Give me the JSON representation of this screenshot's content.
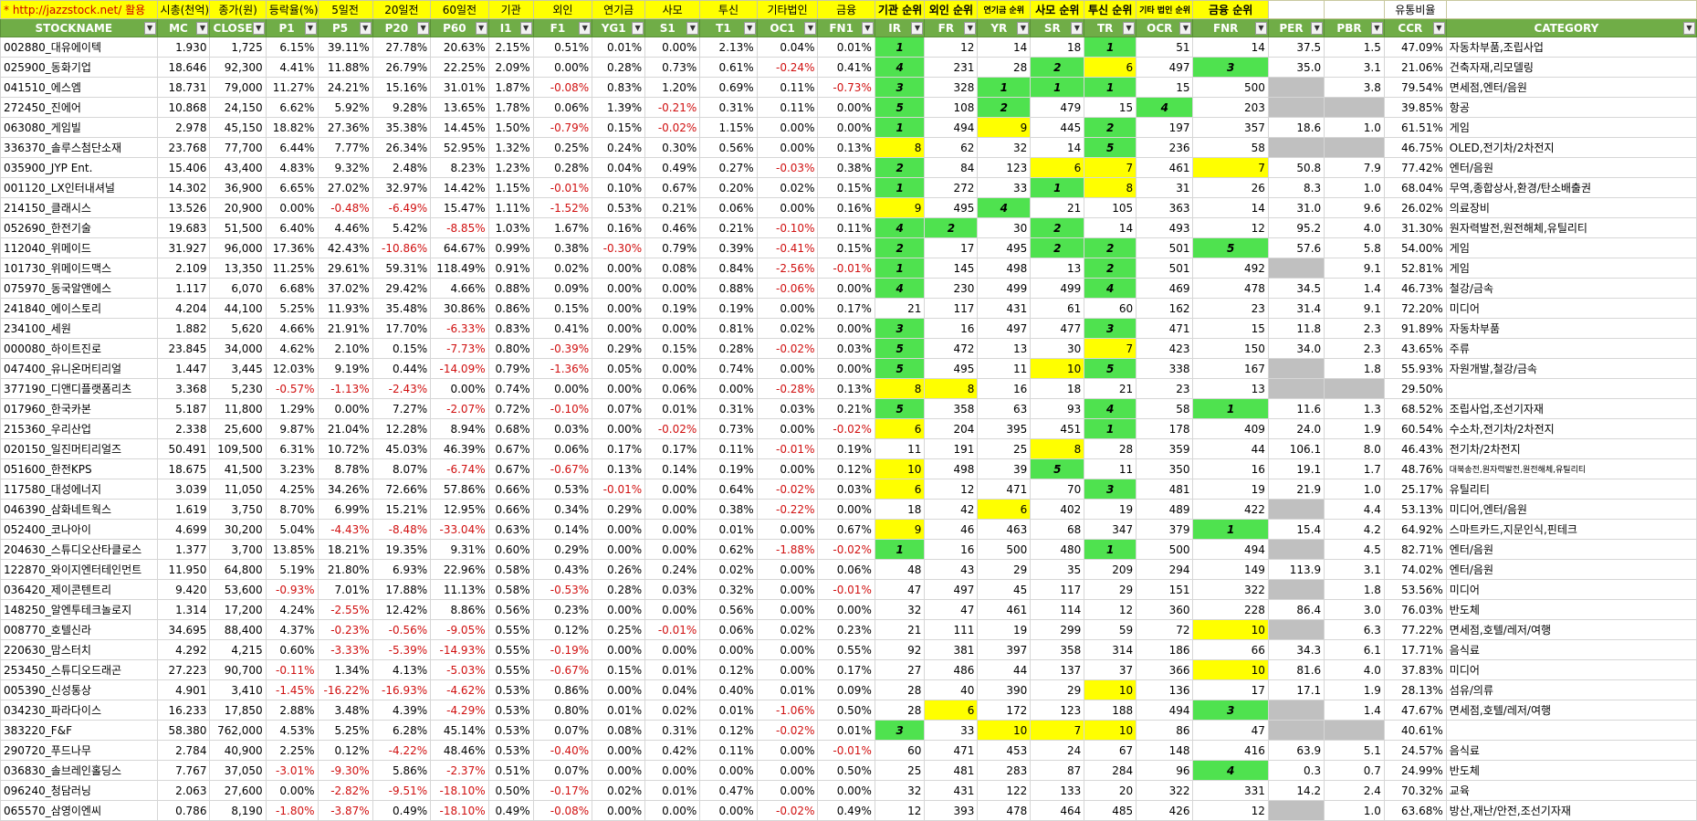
{
  "top_row": [
    "* http://jazzstock.net/ 활용",
    "시총(천억)",
    "종가(원)",
    "등락율(%)",
    "5일전",
    "",
    "20일전",
    "",
    "60일전",
    "",
    "기관",
    "외인",
    "연기금",
    "사모",
    "투신",
    "기타법인",
    "금융",
    "기관 순위",
    "외인 순위",
    "연기금 순위",
    "사모 순위",
    "투신 순위",
    "기타 법인 순위",
    "금융 순위",
    "",
    "",
    "유통비율",
    ""
  ],
  "columns": [
    "STOCKNAME",
    "MC",
    "CLOSE",
    "P1",
    "P5",
    "P20",
    "P60",
    "I1",
    "F1",
    "YG1",
    "S1",
    "T1",
    "OC1",
    "FN1",
    "IR",
    "FR",
    "YR",
    "SR",
    "TR",
    "OCR",
    "FNR",
    "PER",
    "PBR",
    "CCR",
    "CATEGORY"
  ],
  "colors": {
    "header_green": "#70ad47",
    "rank_green": "#4fe24f",
    "highlight_yellow": "#ffff00",
    "missing_gray": "#c0c0c0",
    "negative_red": "#d01010"
  },
  "rows": [
    [
      "002880_대유에이텍",
      "1.930",
      "1,725",
      "6.15%",
      "39.11%",
      "27.78%",
      "20.63%",
      "2.15%",
      "0.51%",
      "0.01%",
      "0.00%",
      "2.13%",
      "0.04%",
      "0.01%",
      "1",
      "12",
      "14",
      "18",
      "1",
      "51",
      "14",
      "37.5",
      "1.5",
      "47.09%",
      "자동차부품,조립사업"
    ],
    [
      "025900_동화기업",
      "18.646",
      "92,300",
      "4.41%",
      "11.88%",
      "26.79%",
      "22.25%",
      "2.09%",
      "0.00%",
      "0.28%",
      "0.73%",
      "0.61%",
      "-0.24%",
      "0.41%",
      "4",
      "231",
      "28",
      "2",
      "6",
      "497",
      "3",
      "35.0",
      "3.1",
      "21.06%",
      "건축자재,리모델링"
    ],
    [
      "041510_에스엠",
      "18.731",
      "79,000",
      "11.27%",
      "24.21%",
      "15.16%",
      "31.01%",
      "1.87%",
      "-0.08%",
      "0.83%",
      "1.20%",
      "0.69%",
      "0.11%",
      "-0.73%",
      "3",
      "328",
      "1",
      "1",
      "1",
      "15",
      "500",
      "",
      "3.8",
      "79.54%",
      "면세점,엔터/음원"
    ],
    [
      "272450_진에어",
      "10.868",
      "24,150",
      "6.62%",
      "5.92%",
      "9.28%",
      "13.65%",
      "1.78%",
      "0.06%",
      "1.39%",
      "-0.21%",
      "0.31%",
      "0.11%",
      "0.00%",
      "5",
      "108",
      "2",
      "479",
      "15",
      "4",
      "203",
      "",
      "",
      "39.85%",
      "항공"
    ],
    [
      "063080_게임빌",
      "2.978",
      "45,150",
      "18.82%",
      "27.36%",
      "35.38%",
      "14.45%",
      "1.50%",
      "-0.79%",
      "0.15%",
      "-0.02%",
      "1.15%",
      "0.00%",
      "0.00%",
      "1",
      "494",
      "9",
      "445",
      "2",
      "197",
      "357",
      "18.6",
      "1.0",
      "61.51%",
      "게임"
    ],
    [
      "336370_솔루스첨단소재",
      "23.768",
      "77,700",
      "6.44%",
      "7.77%",
      "26.34%",
      "52.95%",
      "1.32%",
      "0.25%",
      "0.24%",
      "0.30%",
      "0.56%",
      "0.00%",
      "0.13%",
      "8",
      "62",
      "32",
      "14",
      "5",
      "236",
      "58",
      "",
      "",
      "46.75%",
      "OLED,전기차/2차전지"
    ],
    [
      "035900_JYP Ent.",
      "15.406",
      "43,400",
      "4.83%",
      "9.32%",
      "2.48%",
      "8.23%",
      "1.23%",
      "0.28%",
      "0.04%",
      "0.49%",
      "0.27%",
      "-0.03%",
      "0.38%",
      "2",
      "84",
      "123",
      "6",
      "7",
      "461",
      "7",
      "50.8",
      "7.9",
      "77.42%",
      "엔터/음원"
    ],
    [
      "001120_LX인터내셔널",
      "14.302",
      "36,900",
      "6.65%",
      "27.02%",
      "32.97%",
      "14.42%",
      "1.15%",
      "-0.01%",
      "0.10%",
      "0.67%",
      "0.20%",
      "0.02%",
      "0.15%",
      "1",
      "272",
      "33",
      "1",
      "8",
      "31",
      "26",
      "8.3",
      "1.0",
      "68.04%",
      "무역,종합상사,환경/탄소배출권"
    ],
    [
      "214150_클래시스",
      "13.526",
      "20,900",
      "0.00%",
      "-0.48%",
      "-6.49%",
      "15.47%",
      "1.11%",
      "-1.52%",
      "0.53%",
      "0.21%",
      "0.06%",
      "0.00%",
      "0.16%",
      "9",
      "495",
      "4",
      "21",
      "105",
      "363",
      "14",
      "31.0",
      "9.6",
      "26.02%",
      "의료장비"
    ],
    [
      "052690_한전기술",
      "19.683",
      "51,500",
      "6.40%",
      "4.46%",
      "5.42%",
      "-8.85%",
      "1.03%",
      "1.67%",
      "0.16%",
      "0.46%",
      "0.21%",
      "-0.10%",
      "0.11%",
      "4",
      "2",
      "30",
      "2",
      "14",
      "493",
      "12",
      "95.2",
      "4.0",
      "31.30%",
      "원자력발전,원전해체,유틸리티"
    ],
    [
      "112040_위메이드",
      "31.927",
      "96,000",
      "17.36%",
      "42.43%",
      "-10.86%",
      "64.67%",
      "0.99%",
      "0.38%",
      "-0.30%",
      "0.79%",
      "0.39%",
      "-0.41%",
      "0.15%",
      "2",
      "17",
      "495",
      "2",
      "2",
      "501",
      "5",
      "57.6",
      "5.8",
      "54.00%",
      "게임"
    ],
    [
      "101730_위메이드맥스",
      "2.109",
      "13,350",
      "11.25%",
      "29.61%",
      "59.31%",
      "118.49%",
      "0.91%",
      "0.02%",
      "0.00%",
      "0.08%",
      "0.84%",
      "-2.56%",
      "-0.01%",
      "1",
      "145",
      "498",
      "13",
      "2",
      "501",
      "492",
      "",
      "9.1",
      "52.81%",
      "게임"
    ],
    [
      "075970_동국알앤에스",
      "1.117",
      "6,070",
      "6.68%",
      "37.02%",
      "29.42%",
      "4.66%",
      "0.88%",
      "0.09%",
      "0.00%",
      "0.00%",
      "0.88%",
      "-0.06%",
      "0.00%",
      "4",
      "230",
      "499",
      "499",
      "4",
      "469",
      "478",
      "34.5",
      "1.4",
      "46.73%",
      "철강/금속"
    ],
    [
      "241840_에이스토리",
      "4.204",
      "44,100",
      "5.25%",
      "11.93%",
      "35.48%",
      "30.86%",
      "0.86%",
      "0.15%",
      "0.00%",
      "0.19%",
      "0.19%",
      "0.00%",
      "0.17%",
      "21",
      "117",
      "431",
      "61",
      "60",
      "162",
      "23",
      "31.4",
      "9.1",
      "72.20%",
      "미디어"
    ],
    [
      "234100_세원",
      "1.882",
      "5,620",
      "4.66%",
      "21.91%",
      "17.70%",
      "-6.33%",
      "0.83%",
      "0.41%",
      "0.00%",
      "0.00%",
      "0.81%",
      "0.02%",
      "0.00%",
      "3",
      "16",
      "497",
      "477",
      "3",
      "471",
      "15",
      "11.8",
      "2.3",
      "91.89%",
      "자동차부품"
    ],
    [
      "000080_하이트진로",
      "23.845",
      "34,000",
      "4.62%",
      "2.10%",
      "0.15%",
      "-7.73%",
      "0.80%",
      "-0.39%",
      "0.29%",
      "0.15%",
      "0.28%",
      "-0.02%",
      "0.03%",
      "5",
      "472",
      "13",
      "30",
      "7",
      "423",
      "150",
      "34.0",
      "2.3",
      "43.65%",
      "주류"
    ],
    [
      "047400_유니온머티리얼",
      "1.447",
      "3,445",
      "12.03%",
      "9.19%",
      "0.44%",
      "-14.09%",
      "0.79%",
      "-1.36%",
      "0.05%",
      "0.00%",
      "0.74%",
      "0.00%",
      "0.00%",
      "5",
      "495",
      "11",
      "10",
      "5",
      "338",
      "167",
      "",
      "1.8",
      "55.93%",
      "자원개발,철강/금속"
    ],
    [
      "377190_디앤디플랫폼리츠",
      "3.368",
      "5,230",
      "-0.57%",
      "-1.13%",
      "-2.43%",
      "0.00%",
      "0.74%",
      "0.00%",
      "0.00%",
      "0.06%",
      "0.00%",
      "-0.28%",
      "0.13%",
      "8",
      "8",
      "16",
      "18",
      "21",
      "23",
      "13",
      "",
      "",
      "29.50%",
      ""
    ],
    [
      "017960_한국카본",
      "5.187",
      "11,800",
      "1.29%",
      "0.00%",
      "7.27%",
      "-2.07%",
      "0.72%",
      "-0.10%",
      "0.07%",
      "0.01%",
      "0.31%",
      "0.03%",
      "0.21%",
      "5",
      "358",
      "63",
      "93",
      "4",
      "58",
      "1",
      "11.6",
      "1.3",
      "68.52%",
      "조립사업,조선기자재"
    ],
    [
      "215360_우리산업",
      "2.338",
      "25,600",
      "9.87%",
      "21.04%",
      "12.28%",
      "8.94%",
      "0.68%",
      "0.03%",
      "0.00%",
      "-0.02%",
      "0.73%",
      "0.00%",
      "-0.02%",
      "6",
      "204",
      "395",
      "451",
      "1",
      "178",
      "409",
      "24.0",
      "1.9",
      "60.54%",
      "수소차,전기차/2차전지"
    ],
    [
      "020150_일진머티리얼즈",
      "50.491",
      "109,500",
      "6.31%",
      "10.72%",
      "45.03%",
      "46.39%",
      "0.67%",
      "0.06%",
      "0.17%",
      "0.17%",
      "0.11%",
      "-0.01%",
      "0.19%",
      "11",
      "191",
      "25",
      "8",
      "28",
      "359",
      "44",
      "106.1",
      "8.0",
      "46.43%",
      "전기차/2차전지"
    ],
    [
      "051600_한전KPS",
      "18.675",
      "41,500",
      "3.23%",
      "8.78%",
      "8.07%",
      "-6.74%",
      "0.67%",
      "-0.67%",
      "0.13%",
      "0.14%",
      "0.19%",
      "0.00%",
      "0.12%",
      "10",
      "498",
      "39",
      "5",
      "11",
      "350",
      "16",
      "19.1",
      "1.7",
      "48.76%",
      "대북송전,원자력발전,원전해체,유틸리티"
    ],
    [
      "117580_대성에너지",
      "3.039",
      "11,050",
      "4.25%",
      "34.26%",
      "72.66%",
      "57.86%",
      "0.66%",
      "0.53%",
      "-0.01%",
      "0.00%",
      "0.64%",
      "-0.02%",
      "0.03%",
      "6",
      "12",
      "471",
      "70",
      "3",
      "481",
      "19",
      "21.9",
      "1.0",
      "25.17%",
      "유틸리티"
    ],
    [
      "046390_삼화네트웍스",
      "1.619",
      "3,750",
      "8.70%",
      "6.99%",
      "15.21%",
      "12.95%",
      "0.66%",
      "0.34%",
      "0.29%",
      "0.00%",
      "0.38%",
      "-0.22%",
      "0.00%",
      "18",
      "42",
      "6",
      "402",
      "19",
      "489",
      "422",
      "",
      "4.4",
      "53.13%",
      "미디어,엔터/음원"
    ],
    [
      "052400_코나아이",
      "4.699",
      "30,200",
      "5.04%",
      "-4.43%",
      "-8.48%",
      "-33.04%",
      "0.63%",
      "0.14%",
      "0.00%",
      "0.00%",
      "0.01%",
      "0.00%",
      "0.67%",
      "9",
      "46",
      "463",
      "68",
      "347",
      "379",
      "1",
      "15.4",
      "4.2",
      "64.92%",
      "스마트카드,지문인식,핀테크"
    ],
    [
      "204630_스튜디오산타클로스",
      "1.377",
      "3,700",
      "13.85%",
      "18.21%",
      "19.35%",
      "9.31%",
      "0.60%",
      "0.29%",
      "0.00%",
      "0.00%",
      "0.62%",
      "-1.88%",
      "-0.02%",
      "1",
      "16",
      "500",
      "480",
      "1",
      "500",
      "494",
      "",
      "4.5",
      "82.71%",
      "엔터/음원"
    ],
    [
      "122870_와이지엔터테인먼트",
      "11.950",
      "64,800",
      "5.19%",
      "21.80%",
      "6.93%",
      "22.96%",
      "0.58%",
      "0.43%",
      "0.26%",
      "0.24%",
      "0.02%",
      "0.00%",
      "0.06%",
      "48",
      "43",
      "29",
      "35",
      "209",
      "294",
      "149",
      "113.9",
      "3.1",
      "74.02%",
      "엔터/음원"
    ],
    [
      "036420_제이콘텐트리",
      "9.420",
      "53,600",
      "-0.93%",
      "7.01%",
      "17.88%",
      "11.13%",
      "0.58%",
      "-0.53%",
      "0.28%",
      "0.03%",
      "0.32%",
      "0.00%",
      "-0.01%",
      "47",
      "497",
      "45",
      "117",
      "29",
      "151",
      "322",
      "",
      "1.8",
      "53.56%",
      "미디어"
    ],
    [
      "148250_알엔투테크놀로지",
      "1.314",
      "17,200",
      "4.24%",
      "-2.55%",
      "12.42%",
      "8.86%",
      "0.56%",
      "0.23%",
      "0.00%",
      "0.00%",
      "0.56%",
      "0.00%",
      "0.00%",
      "32",
      "47",
      "461",
      "114",
      "12",
      "360",
      "228",
      "86.4",
      "3.0",
      "76.03%",
      "반도체"
    ],
    [
      "008770_호텔신라",
      "34.695",
      "88,400",
      "4.37%",
      "-0.23%",
      "-0.56%",
      "-9.05%",
      "0.55%",
      "0.12%",
      "0.25%",
      "-0.01%",
      "0.06%",
      "0.02%",
      "0.23%",
      "21",
      "111",
      "19",
      "299",
      "59",
      "72",
      "10",
      "",
      "6.3",
      "77.22%",
      "면세점,호텔/레저/여행"
    ],
    [
      "220630_맘스터치",
      "4.292",
      "4,215",
      "0.60%",
      "-3.33%",
      "-5.39%",
      "-14.93%",
      "0.55%",
      "-0.19%",
      "0.00%",
      "0.00%",
      "0.00%",
      "0.00%",
      "0.55%",
      "92",
      "381",
      "397",
      "358",
      "314",
      "186",
      "66",
      "34.3",
      "6.1",
      "17.71%",
      "음식료"
    ],
    [
      "253450_스튜디오드래곤",
      "27.223",
      "90,700",
      "-0.11%",
      "1.34%",
      "4.13%",
      "-5.03%",
      "0.55%",
      "-0.67%",
      "0.15%",
      "0.01%",
      "0.12%",
      "0.00%",
      "0.17%",
      "27",
      "486",
      "44",
      "137",
      "37",
      "366",
      "10",
      "81.6",
      "4.0",
      "37.83%",
      "미디어"
    ],
    [
      "005390_신성통상",
      "4.901",
      "3,410",
      "-1.45%",
      "-16.22%",
      "-16.93%",
      "-4.62%",
      "0.53%",
      "0.86%",
      "0.00%",
      "0.04%",
      "0.40%",
      "0.01%",
      "0.09%",
      "28",
      "40",
      "390",
      "29",
      "10",
      "136",
      "17",
      "17.1",
      "1.9",
      "28.13%",
      "섬유/의류"
    ],
    [
      "034230_파라다이스",
      "16.233",
      "17,850",
      "2.88%",
      "3.48%",
      "4.39%",
      "-4.29%",
      "0.53%",
      "0.80%",
      "0.01%",
      "0.02%",
      "0.01%",
      "-1.06%",
      "0.50%",
      "28",
      "6",
      "172",
      "123",
      "188",
      "494",
      "3",
      "",
      "1.4",
      "47.67%",
      "면세점,호텔/레저/여행"
    ],
    [
      "383220_F&F",
      "58.380",
      "762,000",
      "4.53%",
      "5.25%",
      "6.28%",
      "45.14%",
      "0.53%",
      "0.07%",
      "0.08%",
      "0.31%",
      "0.12%",
      "-0.02%",
      "0.01%",
      "3",
      "33",
      "10",
      "7",
      "10",
      "86",
      "47",
      "",
      "",
      "40.61%",
      ""
    ],
    [
      "290720_푸드나무",
      "2.784",
      "40,900",
      "2.25%",
      "0.12%",
      "-4.22%",
      "48.46%",
      "0.53%",
      "-0.40%",
      "0.00%",
      "0.42%",
      "0.11%",
      "0.00%",
      "-0.01%",
      "60",
      "471",
      "453",
      "24",
      "67",
      "148",
      "416",
      "63.9",
      "5.1",
      "24.57%",
      "음식료"
    ],
    [
      "036830_솔브레인홀딩스",
      "7.767",
      "37,050",
      "-3.01%",
      "-9.30%",
      "5.86%",
      "-2.37%",
      "0.51%",
      "0.07%",
      "0.00%",
      "0.00%",
      "0.00%",
      "0.00%",
      "0.50%",
      "25",
      "481",
      "283",
      "87",
      "284",
      "96",
      "4",
      "0.3",
      "0.7",
      "24.99%",
      "반도체"
    ],
    [
      "096240_청담러닝",
      "2.063",
      "27,600",
      "0.00%",
      "-2.82%",
      "-9.51%",
      "-18.10%",
      "0.50%",
      "-0.17%",
      "0.02%",
      "0.01%",
      "0.47%",
      "0.00%",
      "0.00%",
      "32",
      "431",
      "122",
      "133",
      "20",
      "322",
      "331",
      "14.2",
      "2.4",
      "70.32%",
      "교육"
    ],
    [
      "065570_삼영이엔씨",
      "0.786",
      "8,190",
      "-1.80%",
      "-3.87%",
      "0.49%",
      "-18.10%",
      "0.49%",
      "-0.08%",
      "0.00%",
      "0.00%",
      "0.00%",
      "-0.02%",
      "0.49%",
      "12",
      "393",
      "478",
      "464",
      "485",
      "426",
      "12",
      "",
      "1.0",
      "63.68%",
      "방산,재난/안전,조선기자재"
    ]
  ]
}
